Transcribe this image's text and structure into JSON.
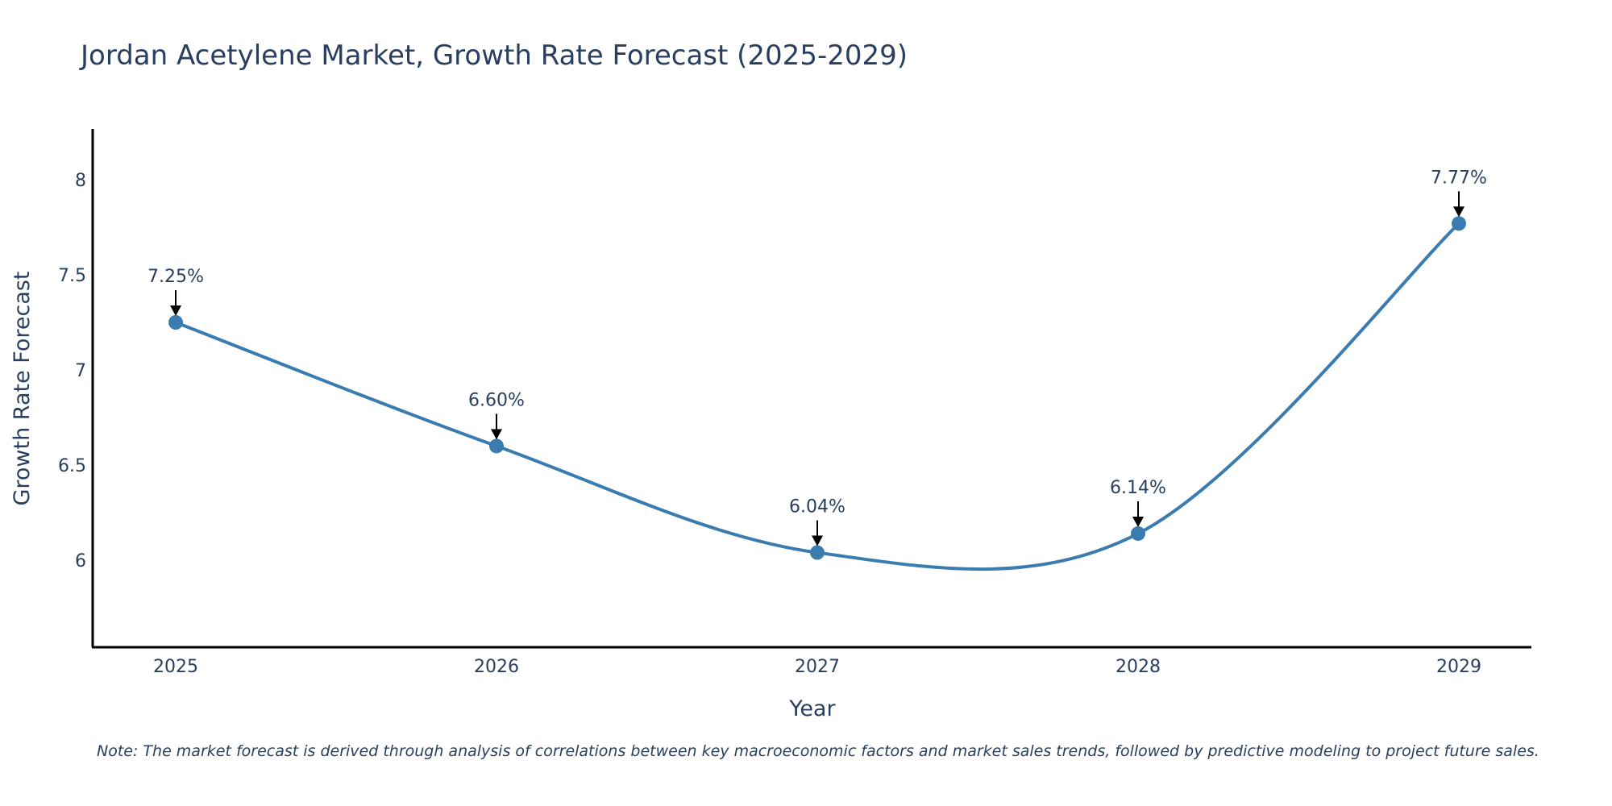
{
  "chart_data": {
    "type": "line",
    "title": "Jordan Acetylene Market, Growth Rate Forecast (2025-2029)",
    "xlabel": "Year",
    "ylabel": "Growth Rate Forecast",
    "x": [
      "2025",
      "2026",
      "2027",
      "2028",
      "2029"
    ],
    "values": [
      7.25,
      6.6,
      6.04,
      6.14,
      7.77
    ],
    "data_labels": [
      "7.25%",
      "6.60%",
      "6.04%",
      "6.14%",
      "7.77%"
    ],
    "yticks": [
      6,
      6.5,
      7,
      7.5,
      8
    ],
    "ytick_labels": [
      "6",
      "6.5",
      "7",
      "7.5",
      "8"
    ],
    "ylim": [
      5.53,
      8.25
    ],
    "grid": false,
    "line_shape": "spline",
    "markers": true,
    "line_color": "#3a7bb0",
    "marker_color": "#3a7bb0",
    "arrow_color": "#000000",
    "text_color": "#2a3f5f",
    "note": "Note: The market forecast is derived through analysis of correlations between key macroeconomic factors and market sales trends, followed by predictive modeling to project future sales."
  }
}
